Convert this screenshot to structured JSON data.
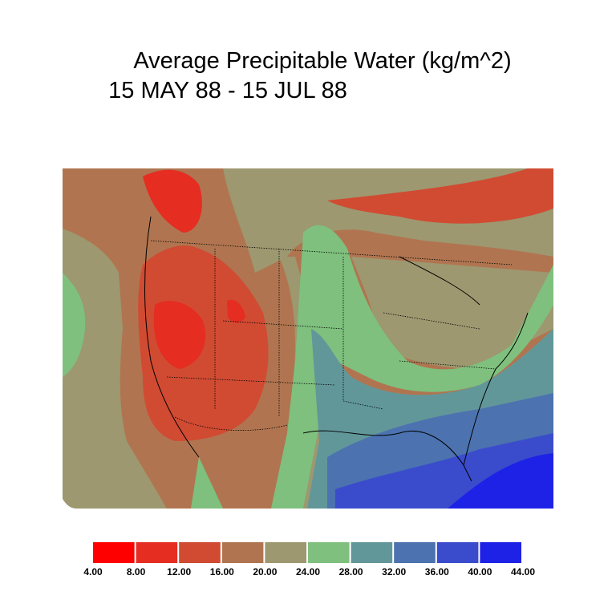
{
  "title": {
    "line1": "Average Precipitable Water (kg/m^2)",
    "line2": "15 MAY 88 - 15 JUL 88"
  },
  "legend": {
    "colors": [
      "#ff0000",
      "#e52d22",
      "#d04b32",
      "#b07550",
      "#9d9870",
      "#7fc07e",
      "#62979a",
      "#4c72b0",
      "#3a4ccc",
      "#1e22e6"
    ],
    "labels": [
      "4.00",
      "8.00",
      "12.00",
      "16.00",
      "20.00",
      "24.00",
      "28.00",
      "32.00",
      "36.00",
      "40.00",
      "44.00"
    ]
  }
}
